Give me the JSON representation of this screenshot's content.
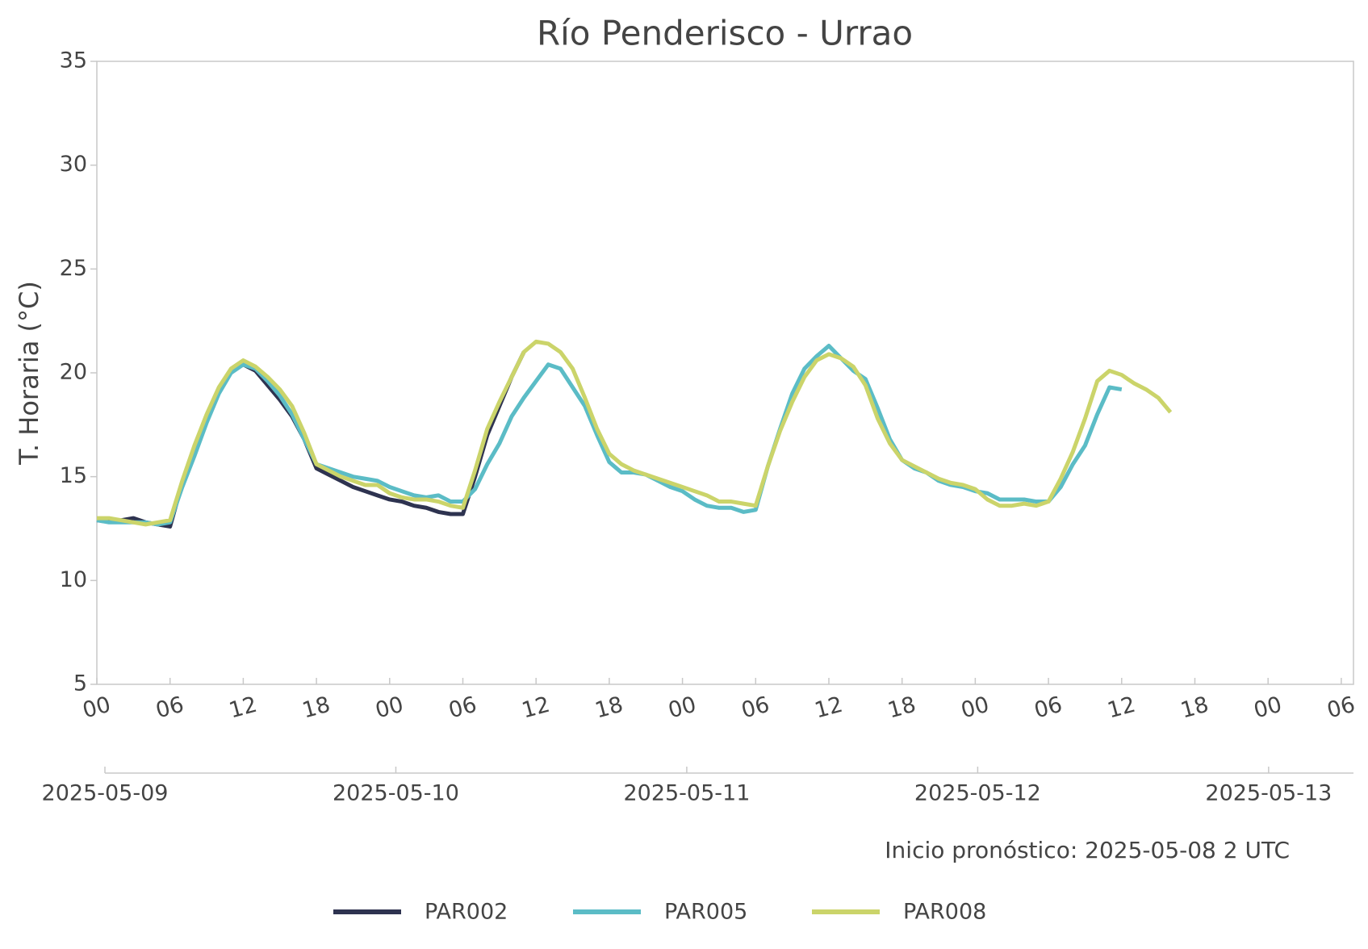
{
  "chart_data": {
    "type": "line",
    "title": "Río Penderisco - Urrao",
    "y_label": "T. Horaria (°C)",
    "annotation": "Inicio pronóstico: 2025-05-08 2 UTC",
    "ylim": [
      5,
      35
    ],
    "yticks": [
      5,
      10,
      15,
      20,
      25,
      30,
      35
    ],
    "xlim": [
      "2025-05-09T00",
      "2025-05-13T07"
    ],
    "xticks": [
      {
        "value": "2025-05-09T00",
        "label": "00"
      },
      {
        "value": "2025-05-09T06",
        "label": "06"
      },
      {
        "value": "2025-05-09T12",
        "label": "12"
      },
      {
        "value": "2025-05-09T18",
        "label": "18"
      },
      {
        "value": "2025-05-10T00",
        "label": "00"
      },
      {
        "value": "2025-05-10T06",
        "label": "06"
      },
      {
        "value": "2025-05-10T12",
        "label": "12"
      },
      {
        "value": "2025-05-10T18",
        "label": "18"
      },
      {
        "value": "2025-05-11T00",
        "label": "00"
      },
      {
        "value": "2025-05-11T06",
        "label": "06"
      },
      {
        "value": "2025-05-11T12",
        "label": "12"
      },
      {
        "value": "2025-05-11T18",
        "label": "18"
      },
      {
        "value": "2025-05-12T00",
        "label": "00"
      },
      {
        "value": "2025-05-12T06",
        "label": "06"
      },
      {
        "value": "2025-05-12T12",
        "label": "12"
      },
      {
        "value": "2025-05-12T18",
        "label": "18"
      },
      {
        "value": "2025-05-13T00",
        "label": "00"
      },
      {
        "value": "2025-05-13T06",
        "label": "06"
      }
    ],
    "x2lim": [
      "2025-05-09T00",
      "2025-05-13T07"
    ],
    "x2ticks": [
      "2025-05-09",
      "2025-05-10",
      "2025-05-11",
      "2025-05-12",
      "2025-05-13"
    ],
    "grid": false,
    "legend": "bottom",
    "x": [
      "2025-05-09T00",
      "2025-05-09T01",
      "2025-05-09T02",
      "2025-05-09T03",
      "2025-05-09T04",
      "2025-05-09T05",
      "2025-05-09T06",
      "2025-05-09T07",
      "2025-05-09T08",
      "2025-05-09T09",
      "2025-05-09T10",
      "2025-05-09T11",
      "2025-05-09T12",
      "2025-05-09T13",
      "2025-05-09T14",
      "2025-05-09T15",
      "2025-05-09T16",
      "2025-05-09T17",
      "2025-05-09T18",
      "2025-05-09T19",
      "2025-05-09T20",
      "2025-05-09T21",
      "2025-05-09T22",
      "2025-05-09T23",
      "2025-05-10T00",
      "2025-05-10T01",
      "2025-05-10T02",
      "2025-05-10T03",
      "2025-05-10T04",
      "2025-05-10T05",
      "2025-05-10T06",
      "2025-05-10T07",
      "2025-05-10T08",
      "2025-05-10T09",
      "2025-05-10T10",
      "2025-05-10T11",
      "2025-05-10T12",
      "2025-05-10T13",
      "2025-05-10T14",
      "2025-05-10T15",
      "2025-05-10T16",
      "2025-05-10T17",
      "2025-05-10T18",
      "2025-05-10T19",
      "2025-05-10T20",
      "2025-05-10T21",
      "2025-05-10T22",
      "2025-05-10T23",
      "2025-05-11T00",
      "2025-05-11T01",
      "2025-05-11T02",
      "2025-05-11T03",
      "2025-05-11T04",
      "2025-05-11T05",
      "2025-05-11T06",
      "2025-05-11T07",
      "2025-05-11T08",
      "2025-05-11T09",
      "2025-05-11T10",
      "2025-05-11T11",
      "2025-05-11T12",
      "2025-05-11T13",
      "2025-05-11T14",
      "2025-05-11T15",
      "2025-05-11T16",
      "2025-05-11T17",
      "2025-05-11T18",
      "2025-05-11T19",
      "2025-05-11T20",
      "2025-05-11T21",
      "2025-05-11T22",
      "2025-05-11T23",
      "2025-05-12T00",
      "2025-05-12T01",
      "2025-05-12T02",
      "2025-05-12T03",
      "2025-05-12T04",
      "2025-05-12T05",
      "2025-05-12T06",
      "2025-05-12T07",
      "2025-05-12T08",
      "2025-05-12T09",
      "2025-05-12T10",
      "2025-05-12T11",
      "2025-05-12T12",
      "2025-05-12T13",
      "2025-05-12T14",
      "2025-05-12T15",
      "2025-05-12T16"
    ],
    "series": [
      {
        "name": "PAR002",
        "color": "#2e3350",
        "values": [
          12.9,
          12.9,
          12.9,
          13.0,
          12.8,
          12.7,
          12.6,
          14.7,
          16.3,
          17.9,
          19.2,
          20.1,
          20.4,
          20.1,
          19.4,
          18.7,
          17.9,
          16.8,
          15.4,
          15.1,
          14.8,
          14.5,
          14.3,
          14.1,
          13.9,
          13.8,
          13.6,
          13.5,
          13.3,
          13.2,
          13.2,
          15.0,
          17.0,
          18.4,
          19.8,
          21.0,
          null,
          null,
          null,
          null,
          null,
          null,
          null,
          null,
          null,
          null,
          null,
          null,
          null,
          null,
          null,
          null,
          null,
          null,
          null,
          null,
          null,
          null,
          null,
          null,
          null,
          null,
          null,
          null,
          null,
          null,
          null,
          null,
          null,
          null,
          null,
          null,
          null,
          null,
          null,
          null,
          null,
          null,
          null,
          null,
          null,
          null,
          null,
          null,
          null,
          null,
          null,
          null,
          null
        ]
      },
      {
        "name": "PAR005",
        "color": "#5bbcc6",
        "values": [
          12.9,
          12.8,
          12.8,
          12.8,
          12.8,
          12.7,
          12.8,
          14.5,
          16.0,
          17.6,
          19.0,
          20.0,
          20.4,
          20.2,
          19.6,
          18.9,
          18.0,
          16.8,
          15.6,
          15.4,
          15.2,
          15.0,
          14.9,
          14.8,
          14.5,
          14.3,
          14.1,
          14.0,
          14.1,
          13.8,
          13.8,
          14.4,
          15.6,
          16.6,
          17.9,
          18.8,
          19.6,
          20.4,
          20.2,
          19.3,
          18.4,
          17.0,
          15.7,
          15.2,
          15.2,
          15.1,
          14.8,
          14.5,
          14.3,
          13.9,
          13.6,
          13.5,
          13.5,
          13.3,
          13.4,
          15.5,
          17.3,
          19.0,
          20.2,
          20.8,
          21.3,
          20.7,
          20.1,
          19.7,
          18.3,
          16.8,
          15.8,
          15.4,
          15.2,
          14.8,
          14.6,
          14.5,
          14.3,
          14.2,
          13.9,
          13.9,
          13.9,
          13.8,
          13.8,
          14.5,
          15.6,
          16.5,
          18.0,
          19.3,
          19.2,
          null,
          null,
          null,
          null
        ]
      },
      {
        "name": "PAR008",
        "color": "#cbd46a",
        "values": [
          13.0,
          13.0,
          12.9,
          12.8,
          12.7,
          12.8,
          12.9,
          14.8,
          16.5,
          18.0,
          19.3,
          20.2,
          20.6,
          20.3,
          19.8,
          19.2,
          18.4,
          17.1,
          15.6,
          15.3,
          15.0,
          14.8,
          14.6,
          14.6,
          14.2,
          14.0,
          13.9,
          13.9,
          13.8,
          13.6,
          13.5,
          15.3,
          17.3,
          18.6,
          19.8,
          21.0,
          21.5,
          21.4,
          21.0,
          20.2,
          18.8,
          17.3,
          16.1,
          15.6,
          15.3,
          15.1,
          14.9,
          14.7,
          14.5,
          14.3,
          14.1,
          13.8,
          13.8,
          13.7,
          13.6,
          15.5,
          17.2,
          18.6,
          19.8,
          20.6,
          20.9,
          20.7,
          20.3,
          19.4,
          17.8,
          16.6,
          15.8,
          15.5,
          15.2,
          14.9,
          14.7,
          14.6,
          14.4,
          13.9,
          13.6,
          13.6,
          13.7,
          13.6,
          13.8,
          14.9,
          16.2,
          17.8,
          19.6,
          20.1,
          19.9,
          19.5,
          19.2,
          18.8,
          18.1
        ]
      }
    ]
  }
}
